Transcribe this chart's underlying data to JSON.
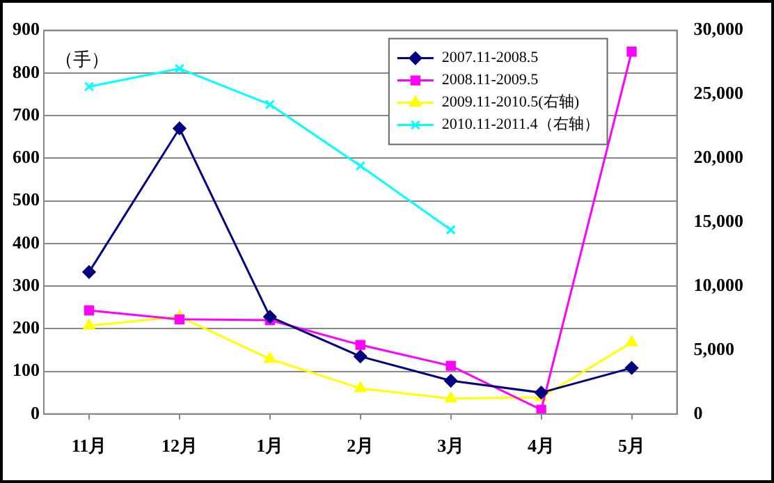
{
  "chart_data": {
    "type": "line",
    "categories": [
      "11月",
      "12月",
      "1月",
      "2月",
      "3月",
      "4月",
      "5月"
    ],
    "series": [
      {
        "name": "2007.11-2008.5",
        "color": "#000080",
        "marker": "diamond",
        "values": [
          333,
          670,
          228,
          135,
          78,
          50,
          108
        ]
      },
      {
        "name": "2008.11-2009.5",
        "color": "#ff00ff",
        "marker": "square",
        "values": [
          243,
          222,
          220,
          162,
          113,
          10,
          850
        ]
      },
      {
        "name": "2009.11-2010.5(右轴)",
        "color": "#ffff00",
        "marker": "triangle",
        "axis": "y2",
        "values": [
          6900,
          7600,
          4300,
          2000,
          1200,
          1300,
          5600
        ]
      },
      {
        "name": "2010.11-2011.4（右轴）",
        "color": "#00ffff",
        "marker": "cross",
        "axis": "y2",
        "values": [
          25600,
          27000,
          24200,
          19400,
          14400,
          null,
          null
        ]
      }
    ],
    "ylim": [
      0,
      900
    ],
    "yticks": [
      0,
      100,
      200,
      300,
      400,
      500,
      600,
      700,
      800,
      900
    ],
    "y2lim": [
      0,
      30000
    ],
    "y2ticks": [
      {
        "value": 0,
        "label": "0"
      },
      {
        "value": 5000,
        "label": "5,000"
      },
      {
        "value": 10000,
        "label": "10,000"
      },
      {
        "value": 15000,
        "label": "15,000"
      },
      {
        "value": 20000,
        "label": "20,000"
      },
      {
        "value": 25000,
        "label": "25,000"
      },
      {
        "value": 30000,
        "label": "30,000"
      }
    ],
    "grid": "y",
    "legend": "top right",
    "line_style": "solid",
    "annotations": [
      "（手）"
    ]
  }
}
